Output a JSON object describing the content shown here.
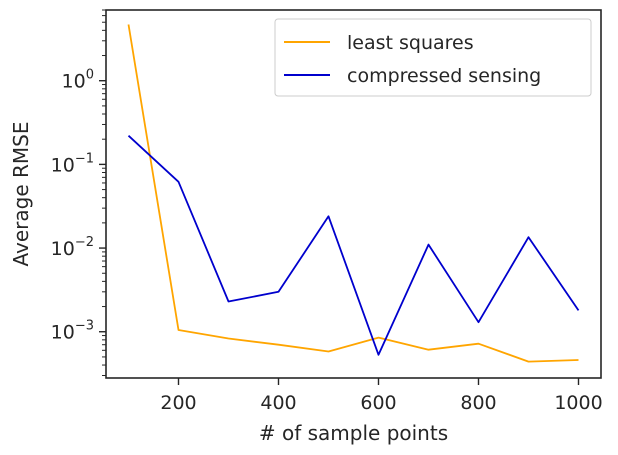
{
  "chart_data": {
    "type": "line",
    "xlabel": "# of sample points",
    "ylabel": "Average RMSE",
    "xlim": [
      55,
      1045
    ],
    "ylim": [
      0.00028,
      7.0
    ],
    "yscale": "log",
    "grid": false,
    "legend_position": "top-right",
    "x": [
      100,
      200,
      300,
      400,
      500,
      600,
      700,
      800,
      900,
      1000
    ],
    "x_ticks": [
      200,
      400,
      600,
      800,
      1000
    ],
    "x_tick_labels": [
      "200",
      "400",
      "600",
      "800",
      "1000"
    ],
    "y_ticks": [
      {
        "value": 1,
        "base": "10",
        "exp": "0"
      },
      {
        "value": 0.1,
        "base": "10",
        "exp": "−1"
      },
      {
        "value": 0.01,
        "base": "10",
        "exp": "−2"
      },
      {
        "value": 0.001,
        "base": "10",
        "exp": "−3"
      }
    ],
    "series": [
      {
        "name": "least squares",
        "color": "#FFA500",
        "values": [
          4.7,
          0.00105,
          0.00083,
          0.0007,
          0.00058,
          0.00085,
          0.00061,
          0.00072,
          0.00044,
          0.00046
        ]
      },
      {
        "name": "compressed sensing",
        "color": "#0000CD",
        "values": [
          0.22,
          0.062,
          0.0023,
          0.003,
          0.024,
          0.00053,
          0.011,
          0.0013,
          0.0135,
          0.0018
        ]
      }
    ]
  }
}
